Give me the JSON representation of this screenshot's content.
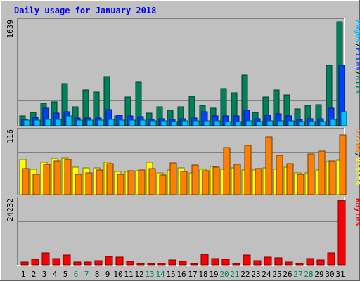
{
  "chart_data": {
    "type": "bar",
    "title": "Daily usage for January 2018",
    "days": [
      "1",
      "2",
      "3",
      "4",
      "5",
      "6",
      "7",
      "8",
      "9",
      "10",
      "11",
      "12",
      "13",
      "14",
      "15",
      "16",
      "17",
      "18",
      "19",
      "20",
      "21",
      "22",
      "23",
      "24",
      "25",
      "26",
      "27",
      "28",
      "29",
      "30",
      "31"
    ],
    "weekend_days": [
      "6",
      "7",
      "13",
      "14",
      "20",
      "21",
      "27",
      "28"
    ],
    "panels": [
      {
        "id": "requests",
        "scale_label": "1639",
        "ylim": [
          0,
          1639
        ],
        "grid": true,
        "series": [
          {
            "name": "Hits",
            "color": "#00805c",
            "values": [
              150,
              210,
              350,
              380,
              660,
              300,
              560,
              530,
              780,
              160,
              450,
              690,
              200,
              300,
              240,
              300,
              460,
              320,
              280,
              590,
              520,
              800,
              210,
              450,
              560,
              490,
              270,
              320,
              330,
              950,
              1639
            ]
          },
          {
            "name": "Files",
            "color": "#0040ff",
            "values": [
              100,
              130,
              280,
              200,
              220,
              120,
              120,
              120,
              260,
              170,
              150,
              140,
              100,
              110,
              100,
              110,
              120,
              220,
              160,
              150,
              150,
              240,
              110,
              170,
              190,
              160,
              100,
              110,
              110,
              280,
              950
            ]
          },
          {
            "name": "Pages",
            "color": "#00c0ff",
            "values": [
              90,
              90,
              100,
              100,
              160,
              90,
              90,
              90,
              100,
              90,
              90,
              90,
              80,
              80,
              70,
              80,
              80,
              80,
              80,
              70,
              70,
              80,
              70,
              80,
              80,
              80,
              70,
              70,
              70,
              100,
              220
            ]
          }
        ]
      },
      {
        "id": "visits",
        "scale_label": "116",
        "ylim": [
          0,
          116
        ],
        "grid": true,
        "series": [
          {
            "name": "Visits",
            "color": "#ffff00",
            "values": [
              64,
              47,
              59,
              66,
              67,
              50,
              49,
              49,
              59,
              42,
              43,
              44,
              59,
              40,
              45,
              49,
              40,
              46,
              51,
              47,
              49,
              45,
              45,
              49,
              46,
              50,
              40,
              40,
              45,
              61,
              63
            ]
          },
          {
            "name": "Sites",
            "color": "#ff8000",
            "values": [
              48,
              38,
              55,
              62,
              64,
              38,
              40,
              45,
              57,
              38,
              44,
              45,
              48,
              36,
              58,
              43,
              54,
              44,
              50,
              86,
              55,
              90,
              48,
              106,
              72,
              57,
              38,
              75,
              80,
              62,
              110
            ]
          }
        ]
      },
      {
        "id": "kbytes",
        "scale_label": "24232",
        "ylim": [
          0,
          24232
        ],
        "grid": true,
        "series": [
          {
            "name": "KBytes",
            "color": "#ff0000",
            "values": [
              1000,
              2200,
              4400,
              2400,
              3600,
              1000,
              1000,
              1600,
              3200,
              2800,
              1400,
              500,
              600,
              600,
              1900,
              1400,
              600,
              3900,
              2400,
              2000,
              600,
              3600,
              1700,
              2800,
              2700,
              1000,
              600,
              2300,
              1800,
              4600,
              24232
            ]
          }
        ]
      }
    ],
    "legend_separator": "/",
    "colors": {
      "background": "#c0c0c0",
      "title": "#0000ff",
      "label": "#000000",
      "weekend_label": "#00805c",
      "grid": "#808080"
    }
  }
}
